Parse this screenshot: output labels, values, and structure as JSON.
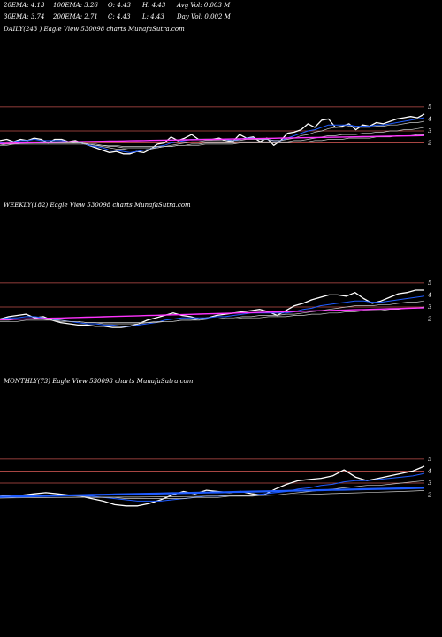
{
  "header": {
    "ema20": "20EMA: 4.13",
    "ema100": "100EMA: 3.26",
    "open": "O: 4.43",
    "high": "H: 4.43",
    "avg_vol": "Avg Vol: 0.003  M",
    "ema30": "30EMA: 3.74",
    "ema200": "200EMA: 2.71",
    "close": "C: 4.43",
    "low": "L: 4.43",
    "day_vol": "Day Vol: 0.002  M"
  },
  "panels": [
    {
      "label": "DAILY(243                    ) Eagle   View  530098 charts MunafaSutra.com"
    },
    {
      "label": "WEEKLY(182) Eagle   View  530098 charts MunafaSutra.com"
    },
    {
      "label": "MONTHLY(73) Eagle   View  530098 charts MunafaSutra.com"
    }
  ],
  "colors": {
    "background": "#000000",
    "price": "#ffffff",
    "ema_blue": "#1e5bff",
    "ema_magenta": "#ff33ff",
    "ema_grey": "#c8c8c8",
    "level_line": "#c0504d"
  },
  "chart_data": [
    {
      "type": "line",
      "title": "DAILY(243                    ) Eagle   View  530098 charts MunafaSutra.com",
      "y_ticks": [
        "5",
        "4",
        "3",
        "2"
      ],
      "ylim": [
        0.2,
        5.8
      ],
      "series": [
        {
          "kind": "price",
          "values": [
            2.2,
            2.3,
            2.1,
            2.3,
            2.2,
            2.4,
            2.3,
            2.0,
            2.3,
            2.3,
            2.1,
            2.2,
            2.0,
            1.8,
            1.6,
            1.4,
            1.2,
            1.3,
            1.1,
            1.1,
            1.3,
            1.2,
            1.5,
            1.9,
            2.0,
            2.5,
            2.2,
            2.4,
            2.7,
            2.3,
            2.3,
            2.3,
            2.4,
            2.2,
            2.1,
            2.7,
            2.4,
            2.5,
            2.1,
            2.4,
            1.8,
            2.2,
            2.8,
            2.9,
            3.1,
            3.6,
            3.3,
            3.9,
            4.0,
            3.3,
            3.4,
            3.6,
            3.1,
            3.5,
            3.4,
            3.7,
            3.6,
            3.8,
            4.0,
            4.1,
            4.2,
            4.1,
            4.4
          ]
        },
        {
          "kind": "ema",
          "values": [
            2.0,
            2.1,
            2.1,
            2.2,
            2.2,
            2.3,
            2.2,
            2.2,
            2.2,
            2.2,
            2.1,
            2.1,
            2.0,
            1.8,
            1.7,
            1.6,
            1.4,
            1.4,
            1.3,
            1.2,
            1.3,
            1.4,
            1.5,
            1.7,
            1.8,
            2.0,
            2.1,
            2.2,
            2.3,
            2.3,
            2.3,
            2.3,
            2.3,
            2.3,
            2.2,
            2.3,
            2.4,
            2.4,
            2.3,
            2.3,
            2.2,
            2.2,
            2.4,
            2.6,
            2.8,
            3.0,
            3.1,
            3.3,
            3.5,
            3.5,
            3.5,
            3.5,
            3.4,
            3.4,
            3.4,
            3.5,
            3.5,
            3.6,
            3.7,
            3.8,
            3.9,
            4.0,
            4.1
          ]
        },
        {
          "kind": "ema",
          "values": [
            1.8,
            1.9,
            2.0,
            2.0,
            2.1,
            2.1,
            2.1,
            2.1,
            2.1,
            2.1,
            2.1,
            2.0,
            2.0,
            1.9,
            1.8,
            1.7,
            1.6,
            1.5,
            1.5,
            1.4,
            1.4,
            1.4,
            1.5,
            1.6,
            1.7,
            1.8,
            1.9,
            2.0,
            2.1,
            2.1,
            2.2,
            2.2,
            2.2,
            2.2,
            2.2,
            2.2,
            2.3,
            2.3,
            2.3,
            2.3,
            2.2,
            2.2,
            2.3,
            2.4,
            2.6,
            2.7,
            2.9,
            3.0,
            3.2,
            3.3,
            3.3,
            3.4,
            3.3,
            3.3,
            3.3,
            3.4,
            3.4,
            3.5,
            3.5,
            3.6,
            3.7,
            3.7,
            3.8
          ]
        },
        {
          "kind": "ema",
          "values": [
            1.9,
            1.9,
            1.9,
            2.0,
            2.0,
            2.0,
            2.0,
            2.0,
            2.0,
            2.0,
            2.0,
            2.0,
            2.0,
            1.9,
            1.9,
            1.8,
            1.7,
            1.7,
            1.6,
            1.6,
            1.6,
            1.6,
            1.6,
            1.6,
            1.7,
            1.7,
            1.8,
            1.8,
            1.9,
            1.9,
            2.0,
            2.0,
            2.0,
            2.0,
            2.0,
            2.1,
            2.1,
            2.1,
            2.1,
            2.1,
            2.1,
            2.1,
            2.1,
            2.2,
            2.2,
            2.3,
            2.4,
            2.5,
            2.6,
            2.6,
            2.7,
            2.7,
            2.7,
            2.8,
            2.8,
            2.9,
            2.9,
            3.0,
            3.0,
            3.1,
            3.1,
            3.2,
            3.3
          ]
        },
        {
          "kind": "ema",
          "values": [
            1.8,
            1.8,
            1.9,
            1.9,
            1.9,
            1.9,
            1.9,
            1.9,
            1.9,
            1.9,
            1.9,
            1.9,
            1.9,
            1.9,
            1.8,
            1.8,
            1.8,
            1.8,
            1.7,
            1.7,
            1.7,
            1.7,
            1.7,
            1.7,
            1.7,
            1.7,
            1.8,
            1.8,
            1.8,
            1.8,
            1.9,
            1.9,
            1.9,
            1.9,
            1.9,
            2.0,
            2.0,
            2.0,
            2.0,
            2.0,
            2.0,
            2.0,
            2.0,
            2.1,
            2.1,
            2.1,
            2.2,
            2.2,
            2.3,
            2.3,
            2.3,
            2.4,
            2.4,
            2.4,
            2.4,
            2.5,
            2.5,
            2.5,
            2.6,
            2.6,
            2.6,
            2.7,
            2.7
          ]
        },
        {
          "kind": "ema_magenta",
          "values": [
            1.95,
            1.96,
            1.98,
            2.0,
            2.01,
            2.02,
            2.04,
            2.05,
            2.06,
            2.08,
            2.09,
            2.1,
            2.11,
            2.12,
            2.13,
            2.14,
            2.15,
            2.16,
            2.17,
            2.18,
            2.19,
            2.2,
            2.21,
            2.22,
            2.23,
            2.24,
            2.25,
            2.26,
            2.27,
            2.28,
            2.29,
            2.3,
            2.31,
            2.32,
            2.33,
            2.34,
            2.35,
            2.36,
            2.37,
            2.38,
            2.39,
            2.4,
            2.41,
            2.42,
            2.43,
            2.44,
            2.45,
            2.46,
            2.47,
            2.48,
            2.49,
            2.5,
            2.51,
            2.52,
            2.53,
            2.54,
            2.55,
            2.56,
            2.57,
            2.58,
            2.59,
            2.6,
            2.62
          ]
        }
      ]
    },
    {
      "type": "line",
      "title": "WEEKLY(182) Eagle   View  530098 charts MunafaSutra.com",
      "y_ticks": [
        "5",
        "4",
        "3",
        "2"
      ],
      "ylim": [
        0.2,
        5.8
      ],
      "series": [
        {
          "kind": "price",
          "values": [
            2.0,
            2.2,
            2.3,
            2.4,
            2.1,
            2.2,
            1.9,
            1.7,
            1.6,
            1.5,
            1.5,
            1.4,
            1.4,
            1.3,
            1.3,
            1.4,
            1.6,
            1.9,
            2.1,
            2.3,
            2.5,
            2.3,
            2.2,
            2.0,
            2.1,
            2.3,
            2.4,
            2.5,
            2.6,
            2.7,
            2.8,
            2.6,
            2.3,
            2.7,
            3.1,
            3.3,
            3.6,
            3.8,
            4.0,
            4.0,
            3.9,
            4.2,
            3.7,
            3.3,
            3.5,
            3.8,
            4.1,
            4.2,
            4.4,
            4.4
          ]
        },
        {
          "kind": "ema",
          "values": [
            2.0,
            2.1,
            2.1,
            2.2,
            2.2,
            2.1,
            2.0,
            1.9,
            1.8,
            1.7,
            1.6,
            1.6,
            1.5,
            1.5,
            1.4,
            1.4,
            1.5,
            1.6,
            1.7,
            1.9,
            2.0,
            2.1,
            2.1,
            2.1,
            2.1,
            2.2,
            2.2,
            2.3,
            2.4,
            2.5,
            2.5,
            2.5,
            2.5,
            2.5,
            2.6,
            2.8,
            2.9,
            3.1,
            3.2,
            3.3,
            3.4,
            3.5,
            3.5,
            3.4,
            3.4,
            3.5,
            3.6,
            3.7,
            3.8,
            3.9
          ]
        },
        {
          "kind": "ema",
          "values": [
            1.9,
            1.9,
            2.0,
            2.0,
            2.0,
            2.0,
            1.9,
            1.9,
            1.8,
            1.8,
            1.7,
            1.7,
            1.6,
            1.6,
            1.6,
            1.6,
            1.6,
            1.7,
            1.7,
            1.8,
            1.8,
            1.9,
            1.9,
            2.0,
            2.0,
            2.0,
            2.1,
            2.1,
            2.2,
            2.2,
            2.3,
            2.3,
            2.3,
            2.4,
            2.4,
            2.5,
            2.6,
            2.7,
            2.8,
            2.9,
            3.0,
            3.1,
            3.1,
            3.1,
            3.2,
            3.2,
            3.3,
            3.4,
            3.4,
            3.5
          ]
        },
        {
          "kind": "ema",
          "values": [
            1.8,
            1.8,
            1.8,
            1.9,
            1.9,
            1.9,
            1.9,
            1.8,
            1.8,
            1.8,
            1.7,
            1.7,
            1.7,
            1.7,
            1.7,
            1.7,
            1.7,
            1.7,
            1.8,
            1.8,
            1.8,
            1.9,
            1.9,
            1.9,
            2.0,
            2.0,
            2.0,
            2.0,
            2.1,
            2.1,
            2.1,
            2.2,
            2.2,
            2.2,
            2.3,
            2.3,
            2.4,
            2.4,
            2.5,
            2.5,
            2.6,
            2.6,
            2.7,
            2.7,
            2.7,
            2.8,
            2.8,
            2.9,
            2.9,
            3.0
          ]
        },
        {
          "kind": "ema_magenta",
          "values": [
            1.95,
            1.97,
            1.99,
            2.01,
            2.03,
            2.05,
            2.07,
            2.09,
            2.11,
            2.13,
            2.15,
            2.17,
            2.19,
            2.21,
            2.23,
            2.25,
            2.27,
            2.29,
            2.31,
            2.33,
            2.35,
            2.37,
            2.39,
            2.41,
            2.43,
            2.45,
            2.47,
            2.49,
            2.51,
            2.53,
            2.55,
            2.57,
            2.59,
            2.61,
            2.63,
            2.65,
            2.67,
            2.69,
            2.71,
            2.73,
            2.75,
            2.77,
            2.79,
            2.81,
            2.83,
            2.85,
            2.87,
            2.89,
            2.91,
            2.93
          ]
        }
      ]
    },
    {
      "type": "line",
      "title": "MONTHLY(73) Eagle   View  530098 charts MunafaSutra.com",
      "y_ticks": [
        "5",
        "4",
        "3",
        "2"
      ],
      "ylim": [
        0.2,
        5.8
      ],
      "series": [
        {
          "kind": "price",
          "values": [
            1.9,
            2.0,
            2.0,
            2.1,
            2.2,
            2.1,
            2.0,
            1.9,
            1.7,
            1.5,
            1.2,
            1.1,
            1.1,
            1.3,
            1.6,
            2.0,
            2.3,
            2.1,
            2.4,
            2.3,
            2.2,
            2.3,
            2.1,
            2.0,
            2.5,
            2.9,
            3.2,
            3.3,
            3.4,
            3.6,
            4.1,
            3.5,
            3.2,
            3.4,
            3.6,
            3.8,
            4.0,
            4.4
          ]
        },
        {
          "kind": "ema",
          "values": [
            1.9,
            1.9,
            2.0,
            2.0,
            2.0,
            2.0,
            2.0,
            1.9,
            1.9,
            1.8,
            1.7,
            1.6,
            1.5,
            1.5,
            1.5,
            1.6,
            1.7,
            1.8,
            1.9,
            1.9,
            2.0,
            2.0,
            2.0,
            2.1,
            2.2,
            2.3,
            2.5,
            2.6,
            2.8,
            2.9,
            3.1,
            3.2,
            3.2,
            3.3,
            3.4,
            3.5,
            3.6,
            3.8
          ]
        },
        {
          "kind": "ema",
          "values": [
            1.8,
            1.8,
            1.9,
            1.9,
            1.9,
            1.9,
            1.9,
            1.9,
            1.8,
            1.8,
            1.8,
            1.7,
            1.7,
            1.7,
            1.7,
            1.7,
            1.7,
            1.8,
            1.8,
            1.8,
            1.9,
            1.9,
            1.9,
            2.0,
            2.0,
            2.1,
            2.2,
            2.3,
            2.4,
            2.5,
            2.6,
            2.7,
            2.8,
            2.8,
            2.9,
            3.0,
            3.1,
            3.2
          ]
        },
        {
          "kind": "ema",
          "values": [
            1.75,
            1.76,
            1.77,
            1.78,
            1.79,
            1.8,
            1.8,
            1.81,
            1.81,
            1.82,
            1.82,
            1.83,
            1.83,
            1.84,
            1.85,
            1.86,
            1.87,
            1.88,
            1.9,
            1.91,
            1.93,
            1.94,
            1.96,
            1.97,
            1.99,
            2.01,
            2.03,
            2.06,
            2.09,
            2.12,
            2.15,
            2.18,
            2.21,
            2.24,
            2.27,
            2.3,
            2.34,
            2.38
          ]
        },
        {
          "kind": "ema_blue_thick",
          "values": [
            1.85,
            1.87,
            1.89,
            1.91,
            1.93,
            1.95,
            1.97,
            1.99,
            2.01,
            2.03,
            2.05,
            2.07,
            2.09,
            2.11,
            2.13,
            2.15,
            2.17,
            2.19,
            2.21,
            2.23,
            2.25,
            2.27,
            2.29,
            2.31,
            2.33,
            2.35,
            2.37,
            2.39,
            2.41,
            2.43,
            2.45,
            2.47,
            2.49,
            2.51,
            2.53,
            2.55,
            2.57,
            2.6
          ]
        }
      ]
    }
  ]
}
